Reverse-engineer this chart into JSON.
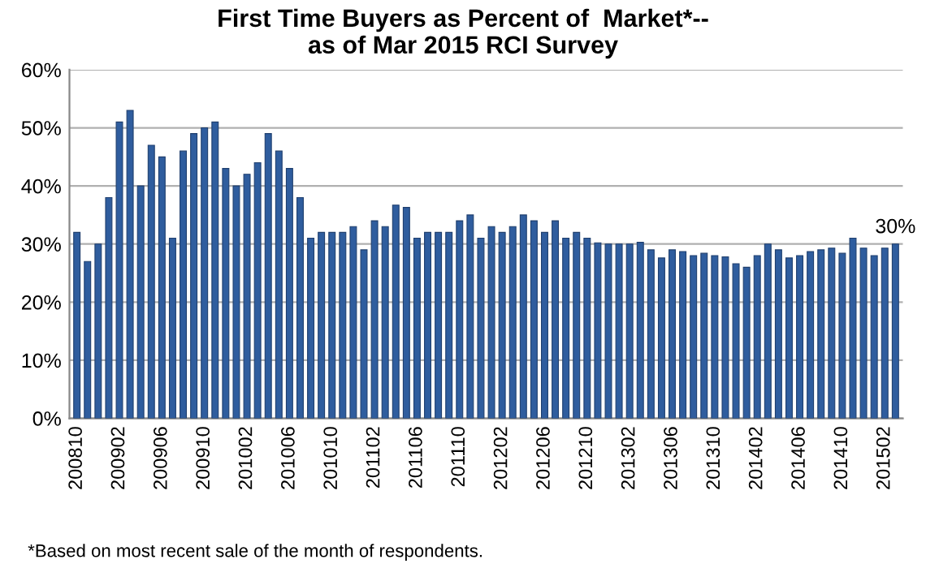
{
  "chart_data": {
    "type": "bar",
    "title": "First Time Buyers as Percent of  Market*--\nas of Mar 2015 RCI Survey",
    "categories": [
      "200810",
      null,
      null,
      null,
      "200902",
      null,
      null,
      null,
      "200906",
      null,
      null,
      null,
      "200910",
      null,
      null,
      null,
      "201002",
      null,
      null,
      null,
      "201006",
      null,
      null,
      null,
      "201010",
      null,
      null,
      null,
      "201102",
      null,
      null,
      null,
      "201106",
      null,
      null,
      null,
      "201110",
      null,
      null,
      null,
      "201202",
      null,
      null,
      null,
      "201206",
      null,
      null,
      null,
      "201210",
      null,
      null,
      null,
      "201302",
      null,
      null,
      null,
      "201306",
      null,
      null,
      null,
      "201310",
      null,
      null,
      null,
      "201402",
      null,
      null,
      null,
      "201406",
      null,
      null,
      null,
      "201410",
      null,
      null,
      null,
      "201502",
      null
    ],
    "values": [
      32,
      27,
      30,
      38,
      51,
      53,
      40,
      47,
      45,
      31,
      46,
      49,
      50,
      51,
      43,
      40,
      42,
      44,
      49,
      46,
      43,
      38,
      31,
      32,
      32,
      32,
      33,
      29,
      34,
      33,
      36.7,
      36.3,
      31,
      32,
      32,
      32,
      34,
      35,
      31,
      33,
      32,
      33,
      35,
      34,
      32,
      34,
      31,
      32,
      31,
      30.2,
      30,
      30,
      30,
      30.3,
      29,
      27.6,
      29,
      28.7,
      28,
      28.4,
      28,
      27.8,
      26.6,
      26,
      28,
      30,
      29,
      27.6,
      28,
      28.7,
      29,
      29.3,
      28.4,
      31,
      29.3,
      28,
      29.3,
      30
    ],
    "value_labels": [
      null,
      null,
      null,
      null,
      null,
      null,
      null,
      null,
      null,
      null,
      null,
      null,
      null,
      null,
      null,
      null,
      null,
      null,
      null,
      null,
      null,
      null,
      null,
      null,
      null,
      null,
      null,
      null,
      null,
      null,
      null,
      null,
      null,
      null,
      null,
      null,
      null,
      null,
      null,
      null,
      null,
      null,
      null,
      null,
      null,
      null,
      null,
      null,
      null,
      null,
      null,
      null,
      null,
      null,
      null,
      null,
      null,
      null,
      null,
      null,
      null,
      null,
      null,
      null,
      null,
      null,
      null,
      null,
      null,
      null,
      null,
      null,
      null,
      null,
      null,
      null,
      null,
      "30%"
    ],
    "color": "#2f5d9e",
    "ylim": [
      0,
      60
    ],
    "yticks": [
      {
        "value": 0,
        "label": "0%"
      },
      {
        "value": 10,
        "label": "10%"
      },
      {
        "value": 20,
        "label": "20%"
      },
      {
        "value": 30,
        "label": "30%"
      },
      {
        "value": 40,
        "label": "40%"
      },
      {
        "value": 50,
        "label": "50%"
      },
      {
        "value": 60,
        "label": "60%"
      }
    ],
    "grid": "y",
    "legend": false,
    "annotations": [
      "*Based on most recent sale of the month of respondents."
    ]
  }
}
